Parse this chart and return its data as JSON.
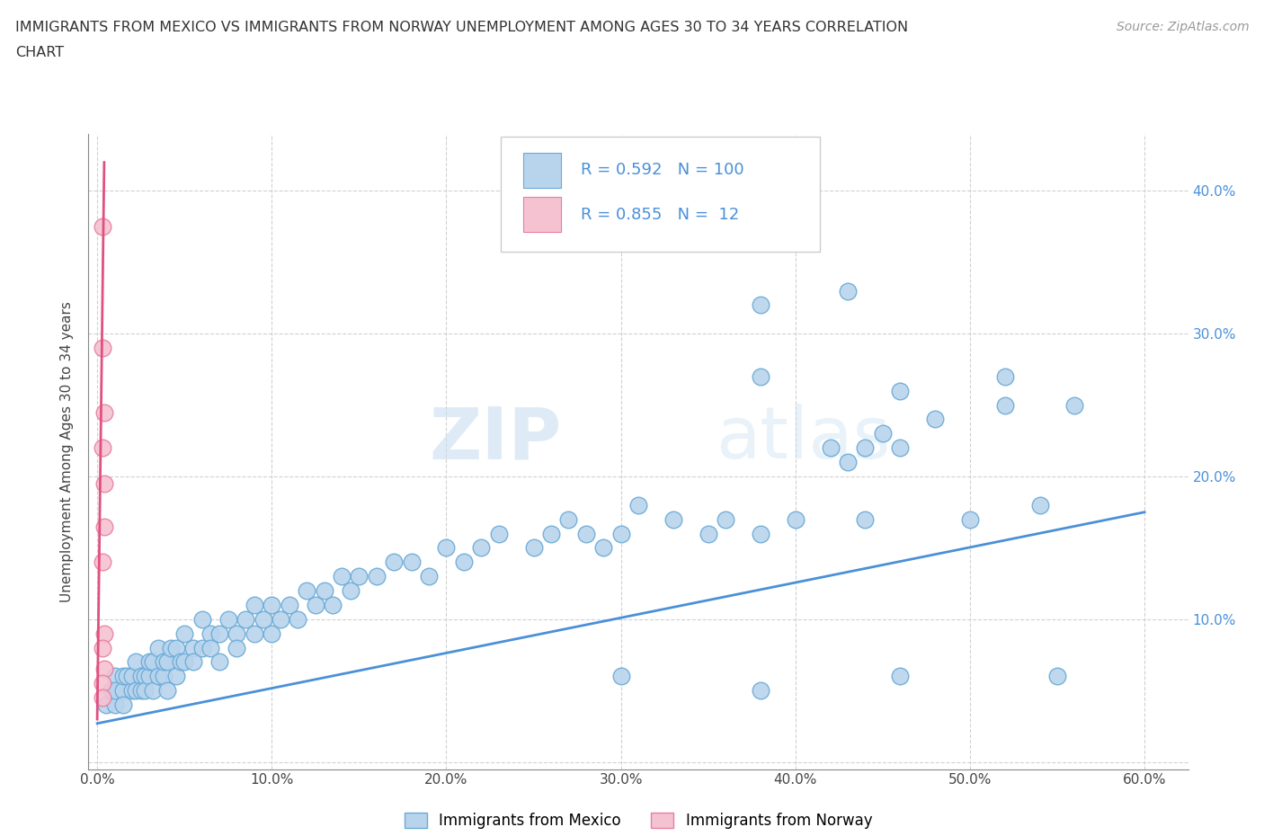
{
  "title_line1": "IMMIGRANTS FROM MEXICO VS IMMIGRANTS FROM NORWAY UNEMPLOYMENT AMONG AGES 30 TO 34 YEARS CORRELATION",
  "title_line2": "CHART",
  "source_text": "Source: ZipAtlas.com",
  "ylabel": "Unemployment Among Ages 30 to 34 years",
  "xlim": [
    -0.005,
    0.625
  ],
  "ylim": [
    -0.005,
    0.44
  ],
  "xticks": [
    0.0,
    0.1,
    0.2,
    0.3,
    0.4,
    0.5,
    0.6
  ],
  "yticks": [
    0.0,
    0.1,
    0.2,
    0.3,
    0.4
  ],
  "mexico_color": "#b8d4ed",
  "mexico_edge": "#6aaad6",
  "norway_color": "#f5c2d2",
  "norway_edge": "#e87fa0",
  "trend_mexico_color": "#4a90d9",
  "trend_norway_color": "#e05080",
  "R_mexico": 0.592,
  "N_mexico": 100,
  "R_norway": 0.855,
  "N_norway": 12,
  "legend_label_mexico": "Immigrants from Mexico",
  "legend_label_norway": "Immigrants from Norway",
  "watermark_zip": "ZIP",
  "watermark_atlas": "atlas",
  "mexico_x": [
    0.005,
    0.008,
    0.01,
    0.01,
    0.01,
    0.015,
    0.015,
    0.015,
    0.017,
    0.02,
    0.02,
    0.022,
    0.022,
    0.025,
    0.025,
    0.027,
    0.027,
    0.03,
    0.03,
    0.032,
    0.032,
    0.035,
    0.035,
    0.038,
    0.038,
    0.04,
    0.04,
    0.042,
    0.045,
    0.045,
    0.048,
    0.05,
    0.05,
    0.055,
    0.055,
    0.06,
    0.06,
    0.065,
    0.065,
    0.07,
    0.07,
    0.075,
    0.08,
    0.08,
    0.085,
    0.09,
    0.09,
    0.095,
    0.1,
    0.1,
    0.105,
    0.11,
    0.115,
    0.12,
    0.125,
    0.13,
    0.135,
    0.14,
    0.145,
    0.15,
    0.16,
    0.17,
    0.18,
    0.19,
    0.2,
    0.21,
    0.22,
    0.23,
    0.25,
    0.26,
    0.27,
    0.28,
    0.29,
    0.3,
    0.31,
    0.33,
    0.35,
    0.36,
    0.38,
    0.4,
    0.42,
    0.43,
    0.44,
    0.45,
    0.46,
    0.48,
    0.5,
    0.52,
    0.54,
    0.56,
    0.38,
    0.43,
    0.46,
    0.52,
    0.38,
    0.46,
    0.3,
    0.38,
    0.44,
    0.55
  ],
  "mexico_y": [
    0.04,
    0.05,
    0.04,
    0.06,
    0.05,
    0.05,
    0.06,
    0.04,
    0.06,
    0.05,
    0.06,
    0.05,
    0.07,
    0.06,
    0.05,
    0.06,
    0.05,
    0.06,
    0.07,
    0.05,
    0.07,
    0.06,
    0.08,
    0.06,
    0.07,
    0.07,
    0.05,
    0.08,
    0.06,
    0.08,
    0.07,
    0.07,
    0.09,
    0.08,
    0.07,
    0.08,
    0.1,
    0.09,
    0.08,
    0.09,
    0.07,
    0.1,
    0.09,
    0.08,
    0.1,
    0.09,
    0.11,
    0.1,
    0.09,
    0.11,
    0.1,
    0.11,
    0.1,
    0.12,
    0.11,
    0.12,
    0.11,
    0.13,
    0.12,
    0.13,
    0.13,
    0.14,
    0.14,
    0.13,
    0.15,
    0.14,
    0.15,
    0.16,
    0.15,
    0.16,
    0.17,
    0.16,
    0.15,
    0.16,
    0.18,
    0.17,
    0.16,
    0.17,
    0.16,
    0.17,
    0.22,
    0.21,
    0.22,
    0.23,
    0.22,
    0.24,
    0.17,
    0.25,
    0.18,
    0.25,
    0.32,
    0.33,
    0.26,
    0.27,
    0.05,
    0.06,
    0.06,
    0.27,
    0.17,
    0.06
  ],
  "norway_x": [
    0.003,
    0.003,
    0.004,
    0.003,
    0.004,
    0.004,
    0.003,
    0.004,
    0.003,
    0.004,
    0.003,
    0.003
  ],
  "norway_y": [
    0.375,
    0.29,
    0.245,
    0.22,
    0.195,
    0.165,
    0.14,
    0.09,
    0.08,
    0.065,
    0.055,
    0.045
  ],
  "trend_mexico_x0": 0.0,
  "trend_mexico_x1": 0.6,
  "trend_mexico_y0": 0.027,
  "trend_mexico_y1": 0.175,
  "trend_norway_x0": 0.0,
  "trend_norway_x1": 0.004,
  "trend_norway_y0": 0.03,
  "trend_norway_y1": 0.42
}
